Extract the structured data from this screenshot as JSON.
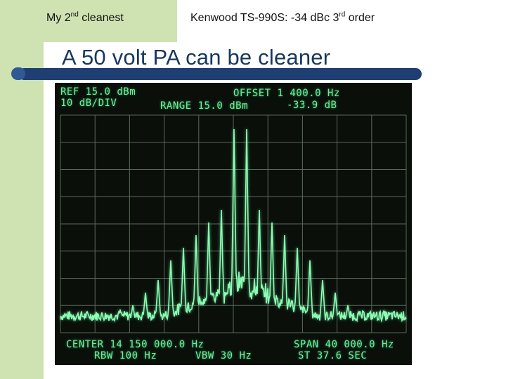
{
  "slide": {
    "rank_label": {
      "pre": "My 2",
      "sup": "nd",
      "post": " cleanest"
    },
    "radio_label": {
      "pre": "Kenwood TS-990S:  -34 dBc 3",
      "sup": "rd",
      "post": " order"
    },
    "title": "A 50 volt PA can be cleaner"
  },
  "analyzer": {
    "ref": "REF 15.0 dBm",
    "scale": "10 dB/DIV",
    "range": "RANGE 15.0 dBm",
    "offset": "OFFSET 1 400.0 Hz",
    "offset_level": "-33.9 dB",
    "center": "CENTER 14 150 000.0 Hz",
    "span": "SPAN 40 000.0 Hz",
    "rbw": "RBW 100 Hz",
    "vbw": "VBW 30 Hz",
    "sweep": "ST 37.6 SEC",
    "trace_color": "#8cffb4",
    "grid_color": "#5a6a5a",
    "background_color": "#0a0f0a"
  },
  "colors": {
    "sidebar": "#cfe3b2",
    "title": "#17375e",
    "rule": "#1f3f73"
  }
}
